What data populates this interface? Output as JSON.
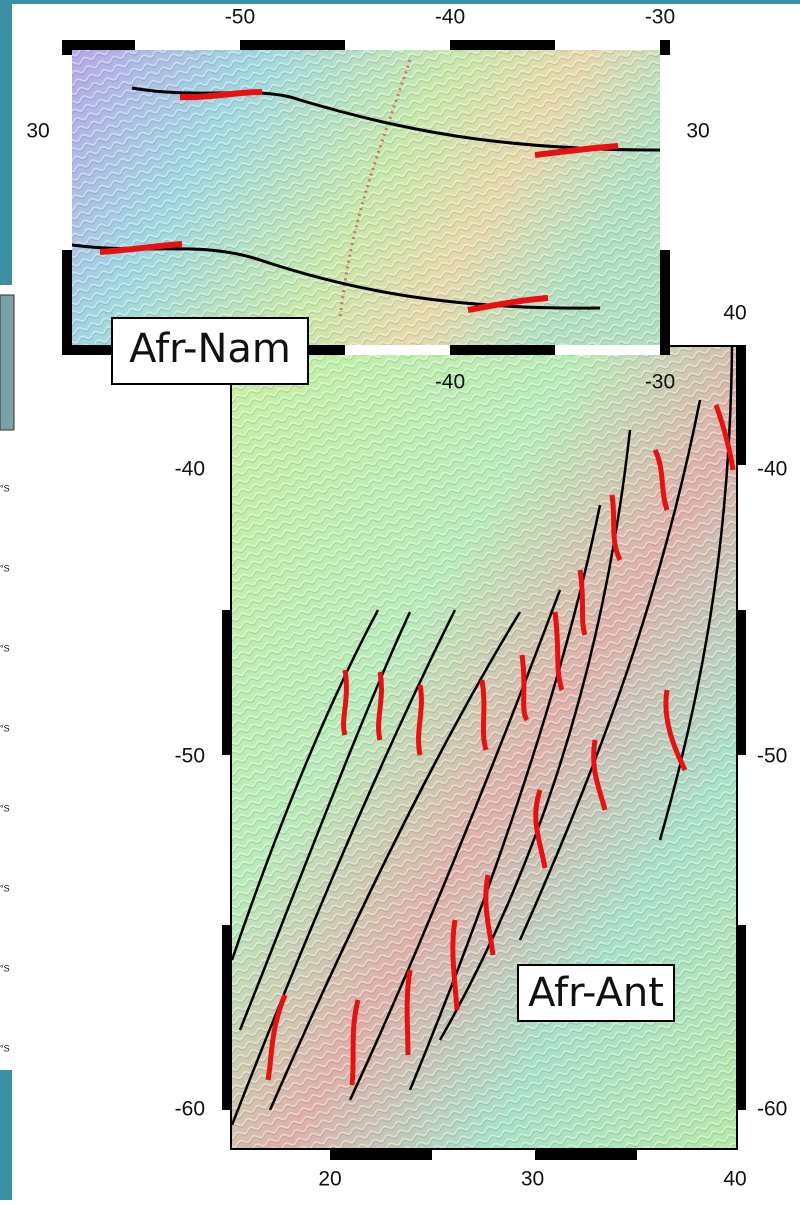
{
  "left_strip": {
    "labels": [
      "°S",
      "°S",
      "°S",
      "°S",
      "°S",
      "°S",
      "°S",
      "°S"
    ]
  },
  "map_top": {
    "label": "Afr-Nam",
    "lon_ticks_top": [
      -50,
      -40,
      -30
    ],
    "lon_ticks_bottom": [
      -40,
      -30
    ],
    "lat_ticks": [
      30
    ]
  },
  "map_bottom": {
    "label": "Afr-Ant",
    "lon_ticks_top": [
      40
    ],
    "lon_ticks_bottom": [
      20,
      30,
      40
    ],
    "lat_ticks": [
      -40,
      -50,
      -60
    ]
  }
}
